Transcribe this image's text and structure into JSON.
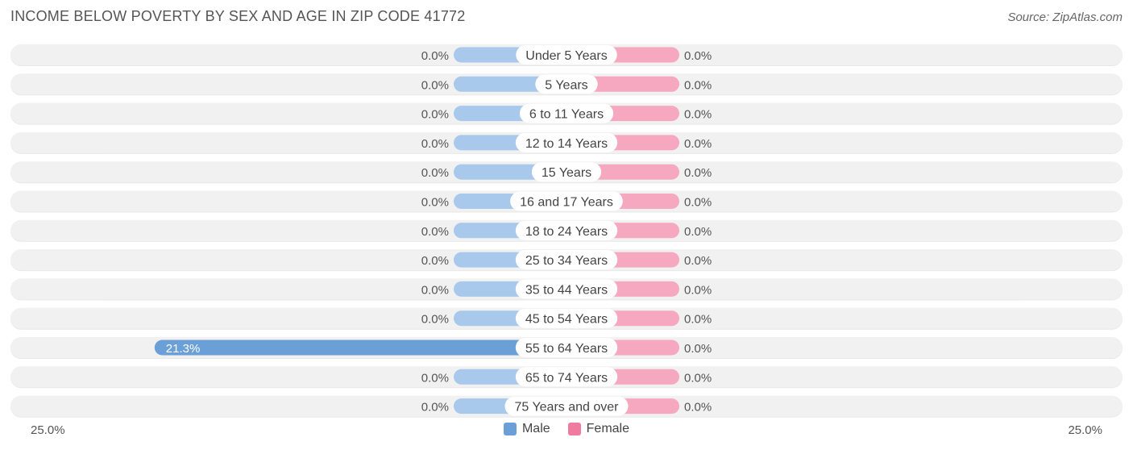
{
  "title": "INCOME BELOW POVERTY BY SEX AND AGE IN ZIP CODE 41772",
  "source": "Source: ZipAtlas.com",
  "colors": {
    "male": "#a8c8ec",
    "male_strong": "#6a9fd8",
    "female": "#f6a8c0",
    "female_legend": "#f07aa0",
    "row_bg": "#f1f1f1"
  },
  "legend": {
    "male": "Male",
    "female": "Female"
  },
  "axis": {
    "left_label": "25.0%",
    "right_label": "25.0%"
  },
  "chart_data": {
    "type": "bar",
    "orientation": "horizontal-diverging",
    "categories": [
      "Under 5 Years",
      "5 Years",
      "6 to 11 Years",
      "12 to 14 Years",
      "15 Years",
      "16 and 17 Years",
      "18 to 24 Years",
      "25 to 34 Years",
      "35 to 44 Years",
      "45 to 54 Years",
      "55 to 64 Years",
      "65 to 74 Years",
      "75 Years and over"
    ],
    "series": [
      {
        "name": "Male",
        "values": [
          0.0,
          0.0,
          0.0,
          0.0,
          0.0,
          0.0,
          0.0,
          0.0,
          0.0,
          0.0,
          21.3,
          0.0,
          0.0
        ],
        "labels": [
          "0.0%",
          "0.0%",
          "0.0%",
          "0.0%",
          "0.0%",
          "0.0%",
          "0.0%",
          "0.0%",
          "0.0%",
          "0.0%",
          "21.3%",
          "0.0%",
          "0.0%"
        ]
      },
      {
        "name": "Female",
        "values": [
          0.0,
          0.0,
          0.0,
          0.0,
          0.0,
          0.0,
          0.0,
          0.0,
          0.0,
          0.0,
          0.0,
          0.0,
          0.0
        ],
        "labels": [
          "0.0%",
          "0.0%",
          "0.0%",
          "0.0%",
          "0.0%",
          "0.0%",
          "0.0%",
          "0.0%",
          "0.0%",
          "0.0%",
          "0.0%",
          "0.0%",
          "0.0%"
        ]
      }
    ],
    "xlim": [
      -25,
      25
    ],
    "grid": false,
    "legend_position": "bottom-center"
  }
}
